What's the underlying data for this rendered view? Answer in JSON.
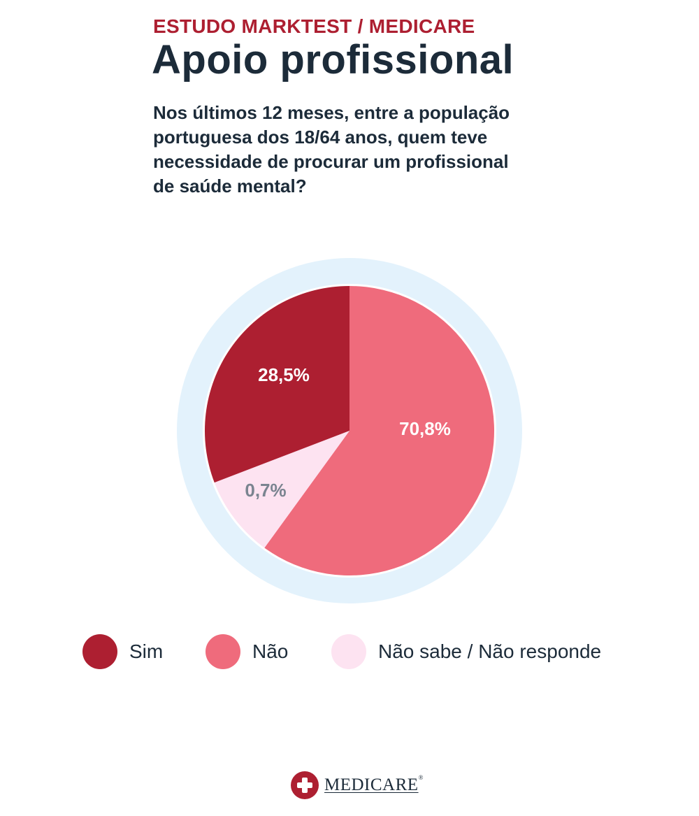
{
  "header": {
    "kicker": "ESTUDO MARKTEST / MEDICARE",
    "title": "Apoio profissional",
    "subtitle_lines": [
      "Nos últimos 12 meses, entre a população",
      "portuguesa dos 18/64 anos, quem teve",
      "necessidade de procurar um profissional",
      "de saúde mental?"
    ]
  },
  "chart_data": {
    "type": "pie",
    "title": "Apoio profissional",
    "slices": [
      {
        "name": "Sim",
        "value": 28.5,
        "label": "28,5%",
        "color": "#ad1f31",
        "label_color": "#ffffff"
      },
      {
        "name": "Não",
        "value": 70.8,
        "label": "70,8%",
        "color": "#ef6b7c",
        "label_color": "#ffffff"
      },
      {
        "name": "Não sabe / Não responde",
        "value": 0.7,
        "label": "0,7%",
        "color": "#fde3f1",
        "label_color": "#7a8490"
      }
    ],
    "ring_color": "#e3f2fc",
    "legend_position": "bottom"
  },
  "legend": {
    "items": [
      "Sim",
      "Não",
      "Não sabe / Não responde"
    ]
  },
  "footer": {
    "logo_text": "MEDICARE",
    "logo_mark": "®"
  }
}
